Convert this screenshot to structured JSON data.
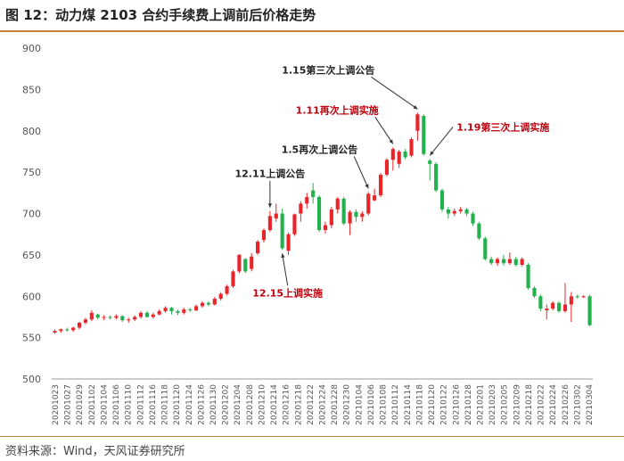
{
  "title": "图 12：动力煤 2103 合约手续费上调前后价格走势",
  "source": "资料来源：Wind，天风证券研究所",
  "colors": {
    "up": "#e8262a",
    "down": "#23b14d",
    "accent": "#c9832c",
    "annotation_red": "#c0000c",
    "annotation_dark": "#222222"
  },
  "chart_data": {
    "type": "candlestick",
    "title": "图 12：动力煤 2103 合约手续费上调前后价格走势",
    "xlabel": "",
    "ylabel": "",
    "ylim": [
      500,
      900
    ],
    "yticks": [
      500,
      550,
      600,
      650,
      700,
      750,
      800,
      850,
      900
    ],
    "grid": false,
    "legend": "none",
    "xtick_labels": [
      "20201023",
      "20201027",
      "20201029",
      "20201102",
      "20201104",
      "20201106",
      "20201110",
      "20201112",
      "20201116",
      "20201118",
      "20201120",
      "20201124",
      "20201126",
      "20201130",
      "20201202",
      "20201204",
      "20201208",
      "20201210",
      "20201214",
      "20201216",
      "20201218",
      "20201222",
      "20201224",
      "20201228",
      "20201230",
      "20210104",
      "20210106",
      "20210108",
      "20210112",
      "20210114",
      "20210118",
      "20210120",
      "20210122",
      "20210126",
      "20210128",
      "20210201",
      "20210203",
      "20210205",
      "20210209",
      "20210218",
      "20210222",
      "20210224",
      "20210226",
      "20210302",
      "20210304"
    ],
    "candles": [
      {
        "date": "20201023",
        "open": 556,
        "close": 558,
        "high": 560,
        "low": 555
      },
      {
        "date": "20201026",
        "open": 558,
        "close": 560,
        "high": 561,
        "low": 556
      },
      {
        "date": "20201027",
        "open": 560,
        "close": 559,
        "high": 562,
        "low": 557
      },
      {
        "date": "20201028",
        "open": 559,
        "close": 562,
        "high": 563,
        "low": 557
      },
      {
        "date": "20201029",
        "open": 562,
        "close": 568,
        "high": 569,
        "low": 560
      },
      {
        "date": "20201030",
        "open": 568,
        "close": 572,
        "high": 574,
        "low": 566
      },
      {
        "date": "20201102",
        "open": 572,
        "close": 580,
        "high": 583,
        "low": 570
      },
      {
        "date": "20201103",
        "open": 578,
        "close": 574,
        "high": 579,
        "low": 572
      },
      {
        "date": "20201104",
        "open": 574,
        "close": 575,
        "high": 577,
        "low": 571
      },
      {
        "date": "20201105",
        "open": 575,
        "close": 574,
        "high": 577,
        "low": 572
      },
      {
        "date": "20201106",
        "open": 574,
        "close": 576,
        "high": 578,
        "low": 572
      },
      {
        "date": "20201109",
        "open": 576,
        "close": 571,
        "high": 577,
        "low": 569
      },
      {
        "date": "20201110",
        "open": 571,
        "close": 572,
        "high": 574,
        "low": 568
      },
      {
        "date": "20201111",
        "open": 572,
        "close": 575,
        "high": 577,
        "low": 570
      },
      {
        "date": "20201112",
        "open": 575,
        "close": 580,
        "high": 582,
        "low": 573
      },
      {
        "date": "20201113",
        "open": 580,
        "close": 575,
        "high": 582,
        "low": 574
      },
      {
        "date": "20201116",
        "open": 575,
        "close": 578,
        "high": 580,
        "low": 573
      },
      {
        "date": "20201117",
        "open": 578,
        "close": 582,
        "high": 584,
        "low": 577
      },
      {
        "date": "20201118",
        "open": 582,
        "close": 586,
        "high": 588,
        "low": 580
      },
      {
        "date": "20201119",
        "open": 586,
        "close": 582,
        "high": 587,
        "low": 578
      },
      {
        "date": "20201120",
        "open": 582,
        "close": 580,
        "high": 584,
        "low": 577
      },
      {
        "date": "20201123",
        "open": 580,
        "close": 584,
        "high": 586,
        "low": 578
      },
      {
        "date": "20201124",
        "open": 584,
        "close": 583,
        "high": 586,
        "low": 581
      },
      {
        "date": "20201125",
        "open": 583,
        "close": 588,
        "high": 590,
        "low": 582
      },
      {
        "date": "20201126",
        "open": 588,
        "close": 592,
        "high": 594,
        "low": 586
      },
      {
        "date": "20201127",
        "open": 592,
        "close": 590,
        "high": 594,
        "low": 588
      },
      {
        "date": "20201130",
        "open": 590,
        "close": 597,
        "high": 599,
        "low": 589
      },
      {
        "date": "20201201",
        "open": 597,
        "close": 603,
        "high": 605,
        "low": 595
      },
      {
        "date": "20201202",
        "open": 603,
        "close": 612,
        "high": 614,
        "low": 601
      },
      {
        "date": "20201203",
        "open": 612,
        "close": 630,
        "high": 632,
        "low": 610
      },
      {
        "date": "20201204",
        "open": 630,
        "close": 650,
        "high": 651,
        "low": 628
      },
      {
        "date": "20201207",
        "open": 645,
        "close": 630,
        "high": 646,
        "low": 628
      },
      {
        "date": "20201208",
        "open": 633,
        "close": 648,
        "high": 652,
        "low": 630
      },
      {
        "date": "20201209",
        "open": 652,
        "close": 666,
        "high": 668,
        "low": 650
      },
      {
        "date": "20201210",
        "open": 668,
        "close": 680,
        "high": 682,
        "low": 665
      },
      {
        "date": "20201211",
        "open": 680,
        "close": 697,
        "high": 703,
        "low": 678
      },
      {
        "date": "20201214",
        "open": 694,
        "close": 700,
        "high": 712,
        "low": 690
      },
      {
        "date": "20201215",
        "open": 700,
        "close": 658,
        "high": 706,
        "low": 656
      },
      {
        "date": "20201216",
        "open": 655,
        "close": 675,
        "high": 677,
        "low": 650
      },
      {
        "date": "20201217",
        "open": 675,
        "close": 699,
        "high": 700,
        "low": 673
      },
      {
        "date": "20201218",
        "open": 700,
        "close": 712,
        "high": 715,
        "low": 690
      },
      {
        "date": "20201221",
        "open": 712,
        "close": 720,
        "high": 725,
        "low": 706
      },
      {
        "date": "20201222",
        "open": 728,
        "close": 720,
        "high": 737,
        "low": 712
      },
      {
        "date": "20201223",
        "open": 720,
        "close": 680,
        "high": 722,
        "low": 678
      },
      {
        "date": "20201224",
        "open": 680,
        "close": 686,
        "high": 690,
        "low": 676
      },
      {
        "date": "20201225",
        "open": 686,
        "close": 705,
        "high": 708,
        "low": 682
      },
      {
        "date": "20201228",
        "open": 705,
        "close": 718,
        "high": 720,
        "low": 700
      },
      {
        "date": "20201229",
        "open": 718,
        "close": 688,
        "high": 720,
        "low": 686
      },
      {
        "date": "20201230",
        "open": 688,
        "close": 702,
        "high": 704,
        "low": 674
      },
      {
        "date": "20201231",
        "open": 702,
        "close": 696,
        "high": 705,
        "low": 690
      },
      {
        "date": "20210104",
        "open": 696,
        "close": 700,
        "high": 703,
        "low": 690
      },
      {
        "date": "20210105",
        "open": 700,
        "close": 724,
        "high": 726,
        "low": 698
      },
      {
        "date": "20210106",
        "open": 716,
        "close": 722,
        "high": 730,
        "low": 715
      },
      {
        "date": "20210107",
        "open": 722,
        "close": 747,
        "high": 749,
        "low": 720
      },
      {
        "date": "20210108",
        "open": 747,
        "close": 765,
        "high": 767,
        "low": 745
      },
      {
        "date": "20210111",
        "open": 765,
        "close": 778,
        "high": 780,
        "low": 752
      },
      {
        "date": "20210112",
        "open": 760,
        "close": 775,
        "high": 777,
        "low": 755
      },
      {
        "date": "20210113",
        "open": 775,
        "close": 768,
        "high": 778,
        "low": 766
      },
      {
        "date": "20210114",
        "open": 770,
        "close": 790,
        "high": 792,
        "low": 768
      },
      {
        "date": "20210115",
        "open": 800,
        "close": 820,
        "high": 822,
        "low": 788
      },
      {
        "date": "20210118",
        "open": 818,
        "close": 772,
        "high": 820,
        "low": 770
      },
      {
        "date": "20210119",
        "open": 764,
        "close": 760,
        "high": 766,
        "low": 740
      },
      {
        "date": "20210120",
        "open": 760,
        "close": 728,
        "high": 762,
        "low": 726
      },
      {
        "date": "20210121",
        "open": 728,
        "close": 705,
        "high": 730,
        "low": 702
      },
      {
        "date": "20210122",
        "open": 705,
        "close": 700,
        "high": 708,
        "low": 694
      },
      {
        "date": "20210125",
        "open": 700,
        "close": 703,
        "high": 706,
        "low": 697
      },
      {
        "date": "20210126",
        "open": 703,
        "close": 705,
        "high": 708,
        "low": 700
      },
      {
        "date": "20210127",
        "open": 705,
        "close": 700,
        "high": 707,
        "low": 697
      },
      {
        "date": "20210128",
        "open": 700,
        "close": 688,
        "high": 702,
        "low": 685
      },
      {
        "date": "20210129",
        "open": 688,
        "close": 670,
        "high": 690,
        "low": 668
      },
      {
        "date": "20210201",
        "open": 670,
        "close": 645,
        "high": 672,
        "low": 643
      },
      {
        "date": "20210202",
        "open": 645,
        "close": 640,
        "high": 648,
        "low": 638
      },
      {
        "date": "20210203",
        "open": 640,
        "close": 645,
        "high": 647,
        "low": 637
      },
      {
        "date": "20210204",
        "open": 645,
        "close": 640,
        "high": 650,
        "low": 637
      },
      {
        "date": "20210205",
        "open": 640,
        "close": 645,
        "high": 653,
        "low": 638
      },
      {
        "date": "20210208",
        "open": 645,
        "close": 638,
        "high": 648,
        "low": 636
      },
      {
        "date": "20210209",
        "open": 638,
        "close": 645,
        "high": 647,
        "low": 636
      },
      {
        "date": "20210218",
        "open": 638,
        "close": 610,
        "high": 640,
        "low": 608
      },
      {
        "date": "20210219",
        "open": 610,
        "close": 600,
        "high": 612,
        "low": 598
      },
      {
        "date": "20210222",
        "open": 600,
        "close": 585,
        "high": 602,
        "low": 582
      },
      {
        "date": "20210223",
        "open": 583,
        "close": 585,
        "high": 590,
        "low": 572
      },
      {
        "date": "20210224",
        "open": 585,
        "close": 592,
        "high": 594,
        "low": 583
      },
      {
        "date": "20210225",
        "open": 592,
        "close": 582,
        "high": 594,
        "low": 580
      },
      {
        "date": "20210226",
        "open": 582,
        "close": 590,
        "high": 616,
        "low": 580
      },
      {
        "date": "20210301",
        "open": 590,
        "close": 600,
        "high": 605,
        "low": 569
      },
      {
        "date": "20210302",
        "open": 600,
        "close": 599,
        "high": 602,
        "low": 597
      },
      {
        "date": "20210303",
        "open": 599,
        "close": 600,
        "high": 601,
        "low": 598
      },
      {
        "date": "20210304",
        "open": 600,
        "close": 565,
        "high": 602,
        "low": 564
      }
    ],
    "annotations": [
      {
        "text": "1.15第三次上调公告",
        "index": 59,
        "color": "dark"
      },
      {
        "text": "1.19第三次上调实施",
        "index": 61,
        "color": "red"
      },
      {
        "text": "1.11再次上调实施",
        "index": 55,
        "color": "red"
      },
      {
        "text": "1.5再次上调公告",
        "index": 51,
        "color": "dark"
      },
      {
        "text": "12.11上调公告",
        "index": 35,
        "color": "dark"
      },
      {
        "text": "12.15上调实施",
        "index": 37,
        "color": "red"
      }
    ]
  }
}
